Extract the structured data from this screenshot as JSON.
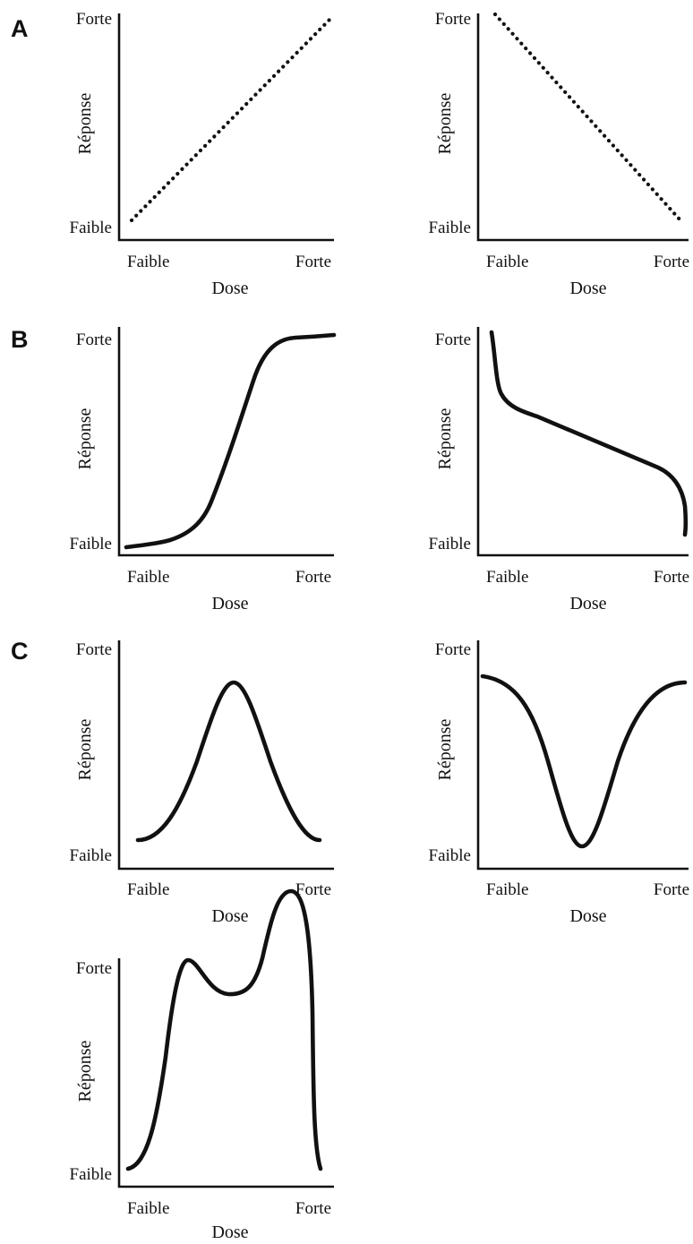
{
  "panel_letters": [
    "A",
    "B",
    "C"
  ],
  "charts": [
    {
      "panel": "A",
      "style": "dotted",
      "shape": "linear-increasing",
      "x_axis": {
        "title": "Dose",
        "low": "Faible",
        "high": "Forte"
      },
      "y_axis": {
        "title": "Réponse",
        "low": "Faible",
        "high": "Forte"
      }
    },
    {
      "panel": "A",
      "style": "dotted",
      "shape": "linear-decreasing",
      "x_axis": {
        "title": "Dose",
        "low": "Faible",
        "high": "Forte"
      },
      "y_axis": {
        "title": "Réponse",
        "low": "Faible",
        "high": "Forte"
      }
    },
    {
      "panel": "B",
      "style": "solid",
      "shape": "sigmoid-increasing",
      "x_axis": {
        "title": "Dose",
        "low": "Faible",
        "high": "Forte"
      },
      "y_axis": {
        "title": "Réponse",
        "low": "Faible",
        "high": "Forte"
      }
    },
    {
      "panel": "B",
      "style": "solid",
      "shape": "decreasing-with-steep-ends",
      "x_axis": {
        "title": "Dose",
        "low": "Faible",
        "high": "Forte"
      },
      "y_axis": {
        "title": "Réponse",
        "low": "Faible",
        "high": "Forte"
      }
    },
    {
      "panel": "C",
      "style": "solid",
      "shape": "inverted-u",
      "x_axis": {
        "title": "Dose",
        "low": "Faible",
        "high": "Forte"
      },
      "y_axis": {
        "title": "Réponse",
        "low": "Faible",
        "high": "Forte"
      }
    },
    {
      "panel": "C",
      "style": "solid",
      "shape": "u-shaped",
      "x_axis": {
        "title": "Dose",
        "low": "Faible",
        "high": "Forte"
      },
      "y_axis": {
        "title": "Réponse",
        "low": "Faible",
        "high": "Forte"
      }
    },
    {
      "panel": "C",
      "style": "solid",
      "shape": "biphasic-two-peaks",
      "x_axis": {
        "title": "Dose",
        "low": "Faible",
        "high": "Forte"
      },
      "y_axis": {
        "title": "Réponse",
        "low": "Faible",
        "high": "Forte"
      }
    }
  ]
}
